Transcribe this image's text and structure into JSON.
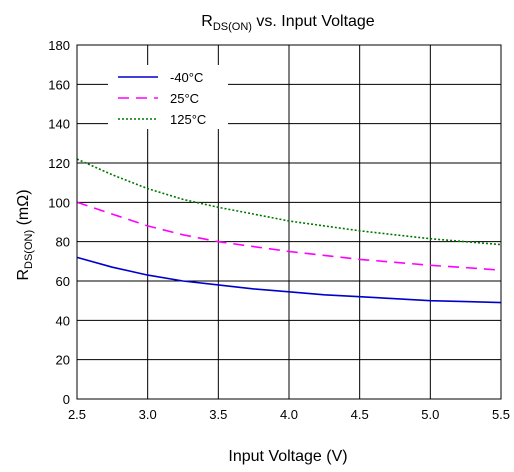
{
  "chart_data": {
    "type": "line",
    "title_main": "R",
    "title_sub": "DS(ON)",
    "title_rest": " vs. Input Voltage",
    "xlabel": "Input Voltage (V)",
    "ylabel_main": "R",
    "ylabel_sub": "DS(ON)",
    "ylabel_rest": " (mΩ)",
    "xlim": [
      2.5,
      5.5
    ],
    "ylim": [
      0,
      180
    ],
    "x_ticks": [
      "2.5",
      "3.0",
      "3.5",
      "4.0",
      "4.5",
      "5.0",
      "5.5"
    ],
    "y_ticks": [
      "0",
      "20",
      "40",
      "60",
      "80",
      "100",
      "120",
      "140",
      "160",
      "180"
    ],
    "grid": true,
    "legend_position": "top-left",
    "x": [
      2.5,
      2.75,
      3.0,
      3.25,
      3.5,
      3.75,
      4.0,
      4.25,
      4.5,
      4.75,
      5.0,
      5.25,
      5.5
    ],
    "series": [
      {
        "name": "-40°C",
        "color": "#0000cc",
        "dash": "solid",
        "values": [
          72,
          67,
          63,
          60,
          58,
          56,
          54.5,
          53,
          52,
          51,
          50,
          49.5,
          49
        ]
      },
      {
        "name": "25°C",
        "color": "#ff00ff",
        "dash": "dashed",
        "values": [
          100,
          94,
          88,
          83.5,
          80,
          77.5,
          75,
          73,
          71,
          69.5,
          68,
          66.8,
          65.5
        ]
      },
      {
        "name": "125°C",
        "color": "#007700",
        "dash": "dotted",
        "values": [
          122,
          114,
          107,
          101.5,
          97.5,
          94,
          90.5,
          88,
          85.5,
          83.5,
          81.5,
          80,
          78.5
        ]
      }
    ]
  }
}
